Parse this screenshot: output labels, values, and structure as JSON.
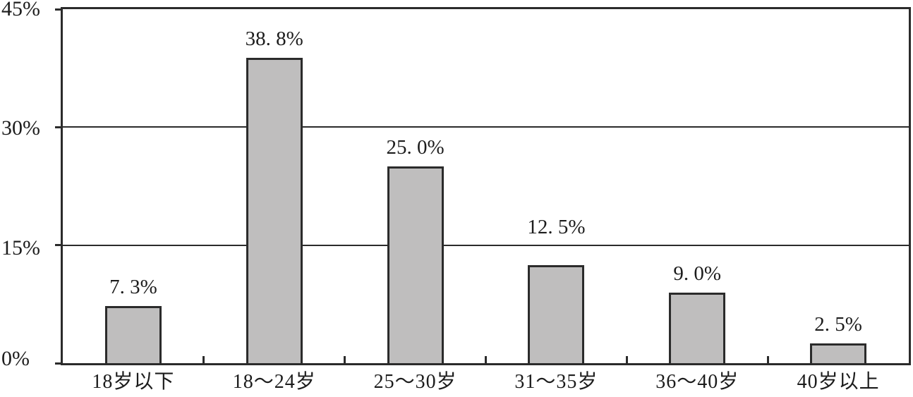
{
  "chart_data": {
    "type": "bar",
    "title": "",
    "xlabel": "",
    "ylabel": "",
    "ylim": [
      0,
      45
    ],
    "grid": "horizontal gridlines at 15% and 30%",
    "legend_position": "none",
    "categories": [
      "18岁以下",
      "18～24岁",
      "25～30岁",
      "31～35岁",
      "36～40岁",
      "40岁以上"
    ],
    "values": [
      7.3,
      38.8,
      25.0,
      12.5,
      9.0,
      2.5
    ],
    "data_labels": [
      "7. 3%",
      "38. 8%",
      "25. 0%",
      "12. 5%",
      "9. 0%",
      "2. 5%"
    ],
    "yticks": [
      {
        "value": 45,
        "label": "45%"
      },
      {
        "value": 30,
        "label": "30%"
      },
      {
        "value": 15,
        "label": "15%"
      },
      {
        "value": 0,
        "label": "0%"
      }
    ],
    "colors": {
      "bar_fill": "#bfbebe",
      "bar_border": "#2b2b2b",
      "axis_line": "#2b2b2b",
      "text": "#1c1c1c",
      "background": "#ffffff"
    }
  }
}
